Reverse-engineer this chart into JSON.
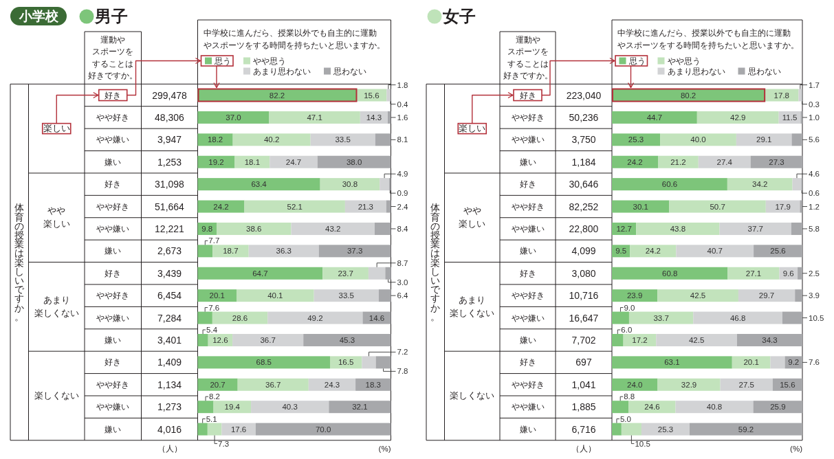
{
  "chart_data": [
    {
      "type": "bar",
      "orientation": "horizontal",
      "stacked": true,
      "title": "男子",
      "subtitle": "中学校に進んだら、授業以外でも自主的に運動やスポーツをする時間を持ちたいと思いますか。",
      "ylabel": "運動やスポーツをすることは好きですか。",
      "xlabel": "(%)",
      "tick_labels": "y",
      "xlim": [
        0,
        100
      ],
      "legend": "top left",
      "categories": [
        "好き",
        "やや好き",
        "やや嫌い",
        "嫌い",
        "好き",
        "やや好き",
        "やや嫌い",
        "嫌い",
        "好き",
        "やや好き",
        "やや嫌い",
        "嫌い",
        "好き",
        "やや好き",
        "やや嫌い",
        "嫌い"
      ],
      "y2_categories": [
        "299,478",
        "48,306",
        "3,947",
        "1,253",
        "31,098",
        "51,664",
        "12,221",
        "2,673",
        "3,439",
        "6,454",
        "7,284",
        "3,401",
        "1,409",
        "1,134",
        "1,273",
        "4,016"
      ],
      "series": [
        {
          "name": "思う",
          "color": "#7dc57a",
          "values": [
            82.2,
            37.0,
            18.2,
            19.2,
            63.4,
            24.2,
            9.8,
            7.7,
            64.7,
            20.1,
            7.6,
            5.4,
            68.5,
            20.7,
            8.2,
            5.1
          ],
          "value_labels": [
            "82.2",
            "37.0",
            "18.2",
            "19.2",
            "63.4",
            "24.2",
            "9.8",
            "7.7",
            "64.7",
            "20.1",
            "7.6",
            "5.4",
            "68.5",
            "20.7",
            "8.2",
            "5.1"
          ]
        },
        {
          "name": "やや思う",
          "color": "#c2e3bc",
          "values": [
            15.6,
            47.1,
            40.2,
            18.1,
            30.8,
            52.1,
            38.6,
            18.7,
            23.7,
            40.1,
            28.6,
            12.6,
            16.5,
            36.7,
            19.4,
            7.3
          ],
          "value_labels": [
            "15.6",
            "47.1",
            "40.2",
            "18.1",
            "30.8",
            "52.1",
            "38.6",
            "18.7",
            "23.7",
            "40.1",
            "28.6",
            "12.6",
            "16.5",
            "36.7",
            "19.4",
            "7.3"
          ]
        },
        {
          "name": "あまり思わない",
          "color": "#d2d3d5",
          "values": [
            1.8,
            14.3,
            33.5,
            24.7,
            4.9,
            21.3,
            43.2,
            36.3,
            8.7,
            33.5,
            49.2,
            36.7,
            7.2,
            24.3,
            40.3,
            17.6
          ],
          "value_labels": [
            "1.8",
            "14.3",
            "33.5",
            "24.7",
            "4.9",
            "21.3",
            "43.2",
            "36.3",
            "8.7",
            "33.5",
            "49.2",
            "36.7",
            "7.2",
            "24.3",
            "40.3",
            "17.6"
          ]
        },
        {
          "name": "思わない",
          "color": "#a7a8ab",
          "values": [
            0.4,
            1.6,
            8.1,
            38.0,
            0.9,
            2.4,
            8.4,
            37.3,
            3.0,
            6.4,
            14.6,
            45.3,
            7.8,
            18.3,
            32.1,
            70.0
          ],
          "value_labels": [
            "0.4",
            "1.6",
            "8.1",
            "38.0",
            "0.9",
            "2.4",
            "8.4",
            "37.3",
            "3.0",
            "6.4",
            "14.6",
            "45.3",
            "7.8",
            "18.3",
            "32.1",
            "70.0"
          ]
        }
      ],
      "annotations": [
        "体育の授業は楽しいですか。",
        "楽しい",
        "やや楽しい",
        "あまり楽しくない",
        "楽しくない",
        "（人）",
        "小学校"
      ]
    },
    {
      "type": "bar",
      "orientation": "horizontal",
      "stacked": true,
      "title": "女子",
      "subtitle": "中学校に進んだら、授業以外でも自主的に運動やスポーツをする時間を持ちたいと思いますか。",
      "ylabel": "運動やスポーツをすることは好きですか。",
      "xlabel": "(%)",
      "tick_labels": "y",
      "xlim": [
        0,
        100
      ],
      "legend": "top left",
      "categories": [
        "好き",
        "やや好き",
        "やや嫌い",
        "嫌い",
        "好き",
        "やや好き",
        "やや嫌い",
        "嫌い",
        "好き",
        "やや好き",
        "やや嫌い",
        "嫌い",
        "好き",
        "やや好き",
        "やや嫌い",
        "嫌い"
      ],
      "y2_categories": [
        "223,040",
        "50,236",
        "3,750",
        "1,184",
        "30,646",
        "82,252",
        "22,800",
        "4,099",
        "3,080",
        "10,716",
        "16,647",
        "7,702",
        "697",
        "1,041",
        "1,885",
        "6,716"
      ],
      "series": [
        {
          "name": "思う",
          "color": "#7dc57a",
          "values": [
            80.2,
            44.7,
            25.3,
            24.2,
            60.6,
            30.1,
            12.7,
            9.5,
            60.8,
            23.9,
            9.0,
            6.0,
            63.1,
            24.0,
            8.8,
            5.0
          ],
          "value_labels": [
            "80.2",
            "44.7",
            "25.3",
            "24.2",
            "60.6",
            "30.1",
            "12.7",
            "9.5",
            "60.8",
            "23.9",
            "9.0",
            "6.0",
            "63.1",
            "24.0",
            "8.8",
            "5.0"
          ]
        },
        {
          "name": "やや思う",
          "color": "#c2e3bc",
          "values": [
            17.8,
            42.9,
            40.0,
            21.2,
            34.2,
            50.7,
            43.8,
            24.2,
            27.1,
            42.5,
            33.7,
            17.2,
            20.1,
            32.9,
            24.6,
            10.5
          ],
          "value_labels": [
            "17.8",
            "42.9",
            "40.0",
            "21.2",
            "34.2",
            "50.7",
            "43.8",
            "24.2",
            "27.1",
            "42.5",
            "33.7",
            "17.2",
            "20.1",
            "32.9",
            "24.6",
            "10.5"
          ]
        },
        {
          "name": "あまり思わない",
          "color": "#d2d3d5",
          "values": [
            1.7,
            11.5,
            29.1,
            27.4,
            4.6,
            17.9,
            37.7,
            40.7,
            9.6,
            29.7,
            46.8,
            42.5,
            7.6,
            27.5,
            40.8,
            25.3
          ],
          "value_labels": [
            "1.7",
            "11.5",
            "29.1",
            "27.4",
            "4.6",
            "17.9",
            "37.7",
            "40.7",
            "9.6",
            "29.7",
            "46.8",
            "42.5",
            "7.6",
            "27.5",
            "40.8",
            "25.3"
          ]
        },
        {
          "name": "思わない",
          "color": "#a7a8ab",
          "values": [
            0.3,
            1.0,
            5.6,
            27.3,
            0.6,
            1.2,
            5.8,
            25.6,
            2.5,
            3.9,
            10.5,
            34.3,
            9.2,
            15.6,
            25.9,
            59.2
          ],
          "value_labels": [
            "0.3",
            "1.0",
            "5.6",
            "27.3",
            "0.6",
            "1.2",
            "5.8",
            "25.6",
            "2.5",
            "3.9",
            "10.5",
            "34.3",
            "9.2",
            "15.6",
            "25.9",
            "59.2"
          ]
        }
      ],
      "annotations": [
        "体育の授業は楽しいですか。",
        "楽しい",
        "やや楽しい",
        "あまり楽しくない",
        "楽しくない",
        "（人）"
      ]
    }
  ]
}
